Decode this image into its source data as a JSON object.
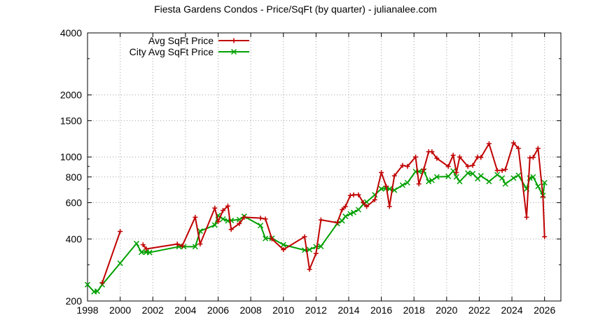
{
  "chart_data": {
    "type": "line",
    "title": "Fiesta Gardens Condos - Price/SqFt (by quarter) - julianalee.com",
    "xlabel": "",
    "ylabel": "",
    "xlim": [
      1998,
      2027
    ],
    "ylim": [
      200,
      4000
    ],
    "y_scale": "log",
    "grid": true,
    "legend_position": "top-left",
    "x_ticks": [
      {
        "value": 1998,
        "label": "1998"
      },
      {
        "value": 2000,
        "label": "2000"
      },
      {
        "value": 2002,
        "label": "2002"
      },
      {
        "value": 2004,
        "label": "2004"
      },
      {
        "value": 2006,
        "label": "2006"
      },
      {
        "value": 2008,
        "label": "2008"
      },
      {
        "value": 2010,
        "label": "2010"
      },
      {
        "value": 2012,
        "label": "2012"
      },
      {
        "value": 2014,
        "label": "2014"
      },
      {
        "value": 2016,
        "label": "2016"
      },
      {
        "value": 2018,
        "label": "2018"
      },
      {
        "value": 2020,
        "label": "2020"
      },
      {
        "value": 2022,
        "label": "2022"
      },
      {
        "value": 2024,
        "label": "2024"
      },
      {
        "value": 2026,
        "label": "2026"
      }
    ],
    "y_ticks": [
      {
        "value": 200,
        "label": "200"
      },
      {
        "value": 400,
        "label": "400"
      },
      {
        "value": 600,
        "label": "600"
      },
      {
        "value": 800,
        "label": "800"
      },
      {
        "value": 1000,
        "label": "1000"
      },
      {
        "value": 1500,
        "label": "1500"
      },
      {
        "value": 2000,
        "label": "2000"
      },
      {
        "value": 4000,
        "label": "4000"
      }
    ],
    "series": [
      {
        "name": "Avg SqFt Price",
        "color": "#c00000",
        "marker": "plus",
        "segments": [
          [
            [
              1998.9,
              245
            ],
            [
              2000.0,
              435
            ]
          ],
          [
            [
              2001.4,
              375
            ],
            [
              2001.6,
              358
            ],
            [
              2003.5,
              378
            ],
            [
              2003.8,
              370
            ],
            [
              2004.6,
              510
            ],
            [
              2004.9,
              378
            ],
            [
              2005.8,
              565
            ],
            [
              2006.0,
              485
            ],
            [
              2006.3,
              550
            ],
            [
              2006.6,
              578
            ],
            [
              2006.8,
              445
            ],
            [
              2007.3,
              475
            ],
            [
              2007.6,
              510
            ],
            [
              2008.6,
              505
            ],
            [
              2008.9,
              500
            ],
            [
              2009.3,
              400
            ],
            [
              2010.0,
              355
            ],
            [
              2011.3,
              410
            ],
            [
              2011.6,
              285
            ],
            [
              2012.0,
              340
            ],
            [
              2012.3,
              495
            ],
            [
              2013.3,
              480
            ],
            [
              2013.6,
              555
            ],
            [
              2013.8,
              575
            ],
            [
              2014.1,
              650
            ],
            [
              2014.3,
              655
            ],
            [
              2014.6,
              655
            ],
            [
              2014.9,
              600
            ],
            [
              2015.1,
              575
            ],
            [
              2015.6,
              620
            ],
            [
              2016.0,
              840
            ],
            [
              2016.3,
              720
            ],
            [
              2016.5,
              575
            ],
            [
              2016.8,
              810
            ],
            [
              2017.3,
              910
            ],
            [
              2017.6,
              900
            ],
            [
              2018.1,
              1000
            ],
            [
              2018.3,
              740
            ],
            [
              2018.6,
              870
            ],
            [
              2018.9,
              1060
            ],
            [
              2019.1,
              1060
            ],
            [
              2019.4,
              985
            ],
            [
              2020.1,
              900
            ],
            [
              2020.4,
              1020
            ],
            [
              2020.6,
              840
            ],
            [
              2020.8,
              1000
            ],
            [
              2021.3,
              900
            ],
            [
              2021.6,
              910
            ],
            [
              2021.9,
              1000
            ],
            [
              2022.1,
              995
            ],
            [
              2022.6,
              1160
            ],
            [
              2023.1,
              860
            ],
            [
              2023.4,
              860
            ],
            [
              2023.6,
              870
            ],
            [
              2024.1,
              1170
            ],
            [
              2024.4,
              1100
            ],
            [
              2024.9,
              510
            ],
            [
              2025.1,
              990
            ],
            [
              2025.3,
              995
            ],
            [
              2025.6,
              1100
            ],
            [
              2025.9,
              640
            ],
            [
              2026.0,
              410
            ]
          ]
        ]
      },
      {
        "name": "City Avg SqFt Price",
        "color": "#00a000",
        "marker": "x",
        "segments": [
          [
            [
              1998.0,
              240
            ],
            [
              1998.4,
              222
            ],
            [
              1998.6,
              223
            ],
            [
              1998.9,
              240
            ],
            [
              2000.0,
              305
            ],
            [
              2001.0,
              380
            ],
            [
              2001.3,
              345
            ],
            [
              2001.6,
              345
            ],
            [
              2001.8,
              344
            ],
            [
              2003.6,
              367
            ],
            [
              2003.9,
              367
            ],
            [
              2004.6,
              367
            ],
            [
              2004.9,
              437
            ],
            [
              2005.8,
              467
            ],
            [
              2006.0,
              520
            ],
            [
              2006.3,
              500
            ],
            [
              2006.6,
              490
            ],
            [
              2006.8,
              492
            ],
            [
              2007.3,
              497
            ],
            [
              2007.6,
              515
            ],
            [
              2008.6,
              465
            ],
            [
              2008.9,
              402
            ],
            [
              2009.3,
              403
            ],
            [
              2010.0,
              375
            ],
            [
              2011.3,
              353
            ],
            [
              2011.6,
              355
            ],
            [
              2012.0,
              367
            ],
            [
              2012.3,
              368
            ],
            [
              2013.3,
              475
            ],
            [
              2013.6,
              490
            ],
            [
              2013.8,
              515
            ],
            [
              2014.1,
              530
            ],
            [
              2014.3,
              538
            ],
            [
              2014.6,
              555
            ],
            [
              2014.9,
              590
            ],
            [
              2015.1,
              605
            ],
            [
              2015.6,
              655
            ],
            [
              2016.0,
              700
            ],
            [
              2016.3,
              705
            ],
            [
              2016.5,
              700
            ],
            [
              2016.8,
              690
            ],
            [
              2017.3,
              730
            ],
            [
              2017.6,
              750
            ],
            [
              2018.1,
              850
            ],
            [
              2018.3,
              850
            ],
            [
              2018.6,
              855
            ],
            [
              2018.9,
              760
            ],
            [
              2019.1,
              770
            ],
            [
              2019.4,
              800
            ],
            [
              2020.1,
              805
            ],
            [
              2020.4,
              855
            ],
            [
              2020.6,
              800
            ],
            [
              2020.8,
              760
            ],
            [
              2021.3,
              835
            ],
            [
              2021.6,
              830
            ],
            [
              2021.9,
              785
            ],
            [
              2022.1,
              810
            ],
            [
              2022.6,
              760
            ],
            [
              2023.1,
              820
            ],
            [
              2023.4,
              790
            ],
            [
              2023.6,
              740
            ],
            [
              2024.1,
              790
            ],
            [
              2024.4,
              815
            ],
            [
              2024.9,
              700
            ],
            [
              2025.1,
              790
            ],
            [
              2025.3,
              800
            ],
            [
              2025.6,
              720
            ],
            [
              2025.9,
              650
            ],
            [
              2026.0,
              750
            ]
          ]
        ]
      }
    ]
  }
}
